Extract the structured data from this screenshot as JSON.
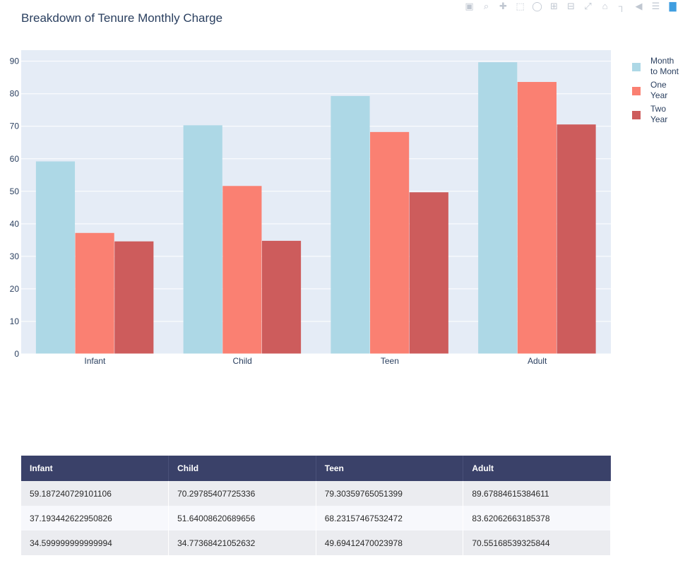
{
  "chart_data": {
    "type": "bar",
    "title": "Breakdown of Tenure Monthly Charge",
    "categories": [
      "Infant",
      "Child",
      "Teen",
      "Adult"
    ],
    "series": [
      {
        "name": "Month to Mont",
        "color": "#add8e6",
        "values": [
          59.187240729101106,
          70.29785407725336,
          79.30359765051399,
          89.67884615384611
        ]
      },
      {
        "name": "One Year",
        "color": "#fa8072",
        "values": [
          37.193442622950826,
          51.64008620689656,
          68.23157467532472,
          83.62062663185378
        ]
      },
      {
        "name": "Two Year",
        "color": "#cd5c5c",
        "values": [
          34.599999999999994,
          34.77368421052632,
          49.69412470023978,
          70.55168539325844
        ]
      }
    ],
    "ylim": [
      0,
      93.4
    ],
    "yticks": [
      0,
      10,
      20,
      30,
      40,
      50,
      60,
      70,
      80,
      90
    ],
    "grid": true,
    "legend_position": "right",
    "plot_bgcolor": "#e5ecf6"
  },
  "modebar": {
    "icons": [
      "camera-icon",
      "zoom-icon",
      "pan-icon",
      "box-select-icon",
      "lasso-icon",
      "zoom-in-icon",
      "zoom-out-icon",
      "autoscale-icon",
      "reset-axes-icon",
      "spike-lines-icon",
      "hover-closest-icon",
      "hover-compare-icon",
      "plotly-logo-icon"
    ]
  },
  "table": {
    "headers": [
      "Infant",
      "Child",
      "Teen",
      "Adult"
    ],
    "rows": [
      [
        "59.187240729101106",
        "70.29785407725336",
        "79.30359765051399",
        "89.67884615384611"
      ],
      [
        "37.193442622950826",
        "51.64008620689656",
        "68.23157467532472",
        "83.62062663185378"
      ],
      [
        "34.599999999999994",
        "34.77368421052632",
        "49.69412470023978",
        "70.55168539325844"
      ]
    ]
  }
}
